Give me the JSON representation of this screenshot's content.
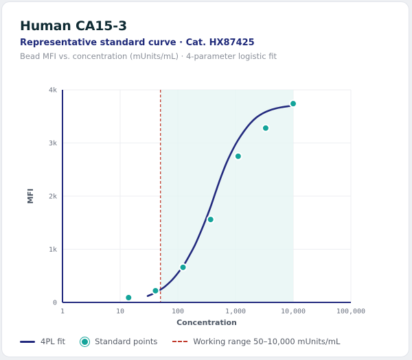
{
  "header": {
    "title": "Human CA15-3",
    "subtitle": "Representative standard curve · Cat. HX87425",
    "caption": "Bead MFI vs. concentration (mUnits/mL) · 4-parameter logistic fit"
  },
  "legend": {
    "fit": "4PL fit",
    "points": "Standard points",
    "range": "Working range 50–10,000 mUnits/mL"
  },
  "colors": {
    "fit": "#232a7e",
    "points": "#14a49a",
    "range_line": "#c0392b",
    "range_fill": "#e6f5f4"
  },
  "chart_data": {
    "type": "scatter",
    "xlabel": "Concentration",
    "ylabel": "MFI",
    "x_scale": "log",
    "xlim": [
      1,
      100000
    ],
    "ylim": [
      0,
      4000
    ],
    "x_ticks": [
      1,
      10,
      100,
      1000,
      10000,
      100000
    ],
    "x_tick_labels": [
      "1",
      "10",
      "100",
      "1,000",
      "10,000",
      "100,000"
    ],
    "y_ticks": [
      0,
      1000,
      2000,
      3000,
      4000
    ],
    "y_tick_labels": [
      "0",
      "1k",
      "2k",
      "3k",
      "4k"
    ],
    "grid": true,
    "working_range": [
      50,
      10000
    ],
    "series": [
      {
        "name": "Standard points",
        "kind": "points",
        "x": [
          14,
          41,
          123,
          370,
          1111,
          3333,
          10000
        ],
        "y": [
          90,
          220,
          660,
          1560,
          2750,
          3280,
          3740
        ]
      },
      {
        "name": "4PL fit",
        "kind": "line",
        "x": [
          30,
          35,
          41,
          50,
          60,
          75,
          90,
          110,
          130,
          160,
          200,
          250,
          300,
          370,
          450,
          550,
          700,
          900,
          1100,
          1400,
          1800,
          2300,
          3000,
          3800,
          5000,
          6500,
          8000,
          10000
        ],
        "y": [
          120,
          150,
          185,
          240,
          300,
          395,
          490,
          610,
          720,
          890,
          1090,
          1330,
          1540,
          1800,
          2070,
          2340,
          2630,
          2880,
          3050,
          3220,
          3370,
          3480,
          3560,
          3610,
          3650,
          3675,
          3690,
          3700
        ]
      }
    ]
  }
}
